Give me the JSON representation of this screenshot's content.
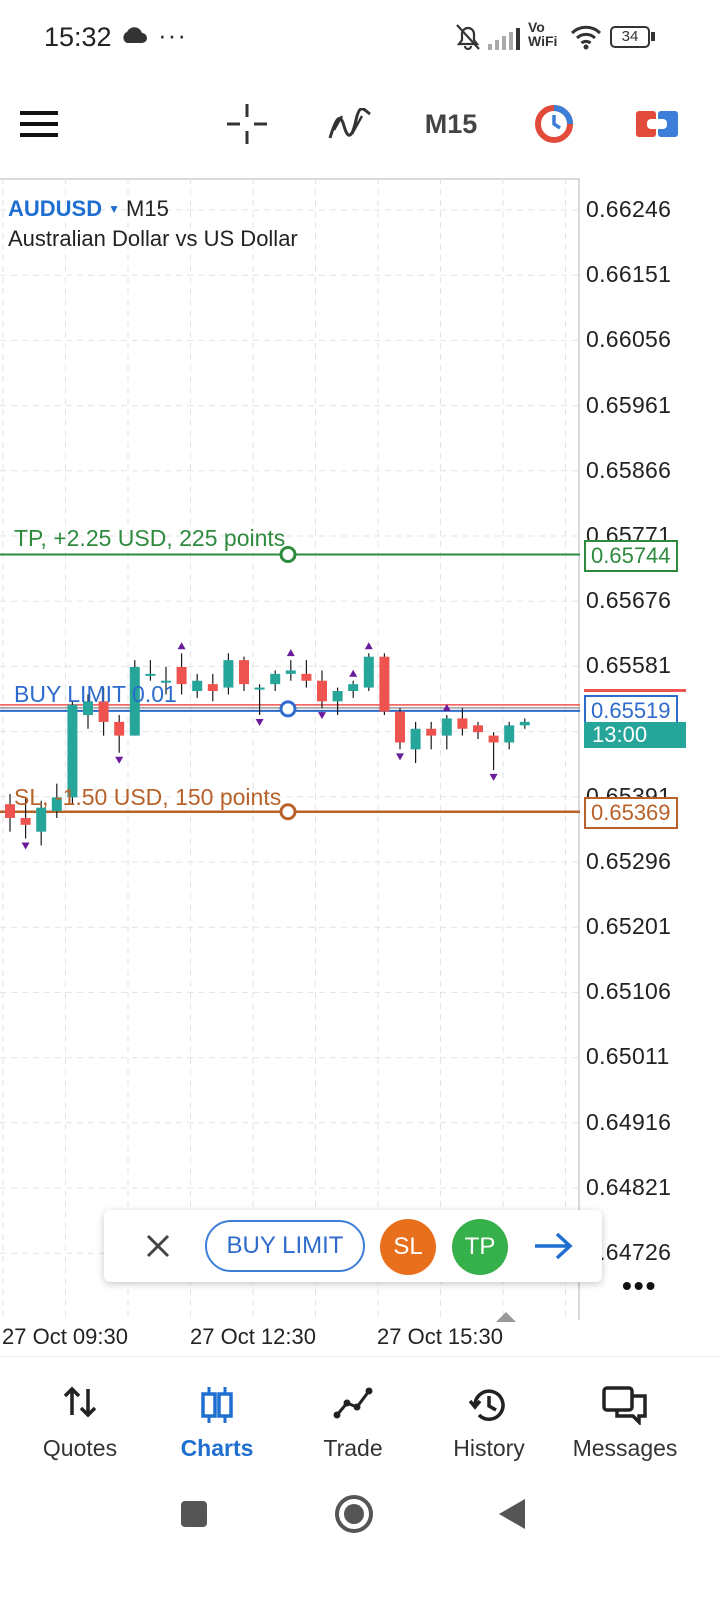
{
  "status_bar": {
    "time": "15:32",
    "extra": "···",
    "vowifi": "Vo\nWiFi",
    "battery": "34"
  },
  "toolbar": {
    "period": "M15"
  },
  "chart": {
    "symbol": "AUDUSD",
    "period": "M15",
    "description": "Australian Dollar vs US Dollar",
    "tp_label": "TP, +2.25 USD, 225 points",
    "buy_label": "BUY LIMIT 0.01",
    "sl_label": "SL, -1.50 USD, 150 points",
    "price_ticks": [
      "0.66246",
      "0.66151",
      "0.66056",
      "0.65961",
      "0.65866",
      "0.65771",
      "0.65676",
      "0.65581",
      "0.65391",
      "0.65296",
      "0.65201",
      "0.65106",
      "0.65011",
      "0.64916",
      "0.64821",
      "0.64726"
    ],
    "tp_price": "0.65744",
    "buy_price": "0.65519",
    "sl_price": "0.65369",
    "countdown": "13:00",
    "time_ticks": [
      "27 Oct 09:30",
      "27 Oct 12:30",
      "27 Oct 15:30"
    ],
    "colors": {
      "bull": "#26a69a",
      "bear": "#ef5350",
      "tp": "#2e8b3e",
      "buy": "#2e6bcc",
      "sl": "#b8622a",
      "marker": "#6a1b9a"
    }
  },
  "order_bar": {
    "buy_limit": "BUY LIMIT",
    "sl": "SL",
    "tp": "TP"
  },
  "bottom_nav": {
    "items": [
      {
        "label": "Quotes",
        "icon": "quotes-arrows-icon"
      },
      {
        "label": "Charts",
        "icon": "candlesticks-icon",
        "active": true
      },
      {
        "label": "Trade",
        "icon": "trade-graph-icon"
      },
      {
        "label": "History",
        "icon": "history-clock-icon"
      },
      {
        "label": "Messages",
        "icon": "messages-icon"
      }
    ]
  },
  "chart_data": {
    "type": "candlestick",
    "title": "",
    "symbol": "AUDUSD",
    "timeframe": "M15",
    "ylim": [
      0.6467,
      0.663
    ],
    "candles": [
      {
        "o": 0.6538,
        "h": 0.65395,
        "l": 0.6534,
        "c": 0.6536
      },
      {
        "o": 0.6536,
        "h": 0.6539,
        "l": 0.6533,
        "c": 0.6535
      },
      {
        "o": 0.6534,
        "h": 0.65385,
        "l": 0.6532,
        "c": 0.65375
      },
      {
        "o": 0.6537,
        "h": 0.6541,
        "l": 0.6536,
        "c": 0.6539
      },
      {
        "o": 0.6539,
        "h": 0.6553,
        "l": 0.6538,
        "c": 0.65525
      },
      {
        "o": 0.6551,
        "h": 0.6554,
        "l": 0.6549,
        "c": 0.6553
      },
      {
        "o": 0.6553,
        "h": 0.6555,
        "l": 0.6548,
        "c": 0.655
      },
      {
        "o": 0.655,
        "h": 0.6551,
        "l": 0.65455,
        "c": 0.6548
      },
      {
        "o": 0.6548,
        "h": 0.6559,
        "l": 0.6548,
        "c": 0.6558
      },
      {
        "o": 0.6557,
        "h": 0.6559,
        "l": 0.6556,
        "c": 0.6557
      },
      {
        "o": 0.6556,
        "h": 0.6558,
        "l": 0.6554,
        "c": 0.6556
      },
      {
        "o": 0.6558,
        "h": 0.656,
        "l": 0.6554,
        "c": 0.65555
      },
      {
        "o": 0.65545,
        "h": 0.6557,
        "l": 0.65535,
        "c": 0.6556
      },
      {
        "o": 0.65555,
        "h": 0.6557,
        "l": 0.6553,
        "c": 0.65545
      },
      {
        "o": 0.6555,
        "h": 0.656,
        "l": 0.6554,
        "c": 0.6559
      },
      {
        "o": 0.6559,
        "h": 0.65595,
        "l": 0.65545,
        "c": 0.65555
      },
      {
        "o": 0.6555,
        "h": 0.65555,
        "l": 0.6551,
        "c": 0.6555
      },
      {
        "o": 0.65555,
        "h": 0.65575,
        "l": 0.65545,
        "c": 0.6557
      },
      {
        "o": 0.6557,
        "h": 0.6559,
        "l": 0.6556,
        "c": 0.65575
      },
      {
        "o": 0.6557,
        "h": 0.6559,
        "l": 0.6555,
        "c": 0.6556
      },
      {
        "o": 0.6556,
        "h": 0.65575,
        "l": 0.6552,
        "c": 0.6553
      },
      {
        "o": 0.6553,
        "h": 0.6555,
        "l": 0.6551,
        "c": 0.65545
      },
      {
        "o": 0.65545,
        "h": 0.6556,
        "l": 0.65535,
        "c": 0.65555
      },
      {
        "o": 0.6555,
        "h": 0.656,
        "l": 0.65545,
        "c": 0.65595
      },
      {
        "o": 0.65595,
        "h": 0.656,
        "l": 0.6551,
        "c": 0.65515
      },
      {
        "o": 0.65515,
        "h": 0.6552,
        "l": 0.6546,
        "c": 0.6547
      },
      {
        "o": 0.6546,
        "h": 0.655,
        "l": 0.6544,
        "c": 0.6549
      },
      {
        "o": 0.6549,
        "h": 0.655,
        "l": 0.6546,
        "c": 0.6548
      },
      {
        "o": 0.6548,
        "h": 0.6551,
        "l": 0.6546,
        "c": 0.65505
      },
      {
        "o": 0.65505,
        "h": 0.6552,
        "l": 0.6548,
        "c": 0.6549
      },
      {
        "o": 0.65495,
        "h": 0.655,
        "l": 0.65475,
        "c": 0.65485
      },
      {
        "o": 0.6548,
        "h": 0.65485,
        "l": 0.6543,
        "c": 0.6547
      },
      {
        "o": 0.6547,
        "h": 0.655,
        "l": 0.6546,
        "c": 0.65495
      },
      {
        "o": 0.65495,
        "h": 0.65505,
        "l": 0.6549,
        "c": 0.655
      }
    ],
    "levels": [
      {
        "name": "TP",
        "price": 0.65744
      },
      {
        "name": "BUY LIMIT",
        "price": 0.65519
      },
      {
        "name": "SL",
        "price": 0.65369
      }
    ]
  }
}
